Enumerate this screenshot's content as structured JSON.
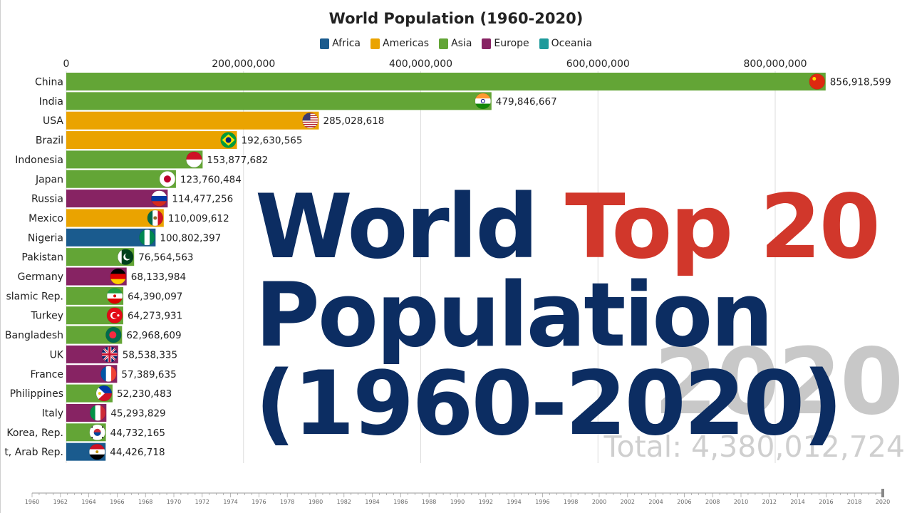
{
  "chart_data": {
    "type": "bar",
    "title": "World Population (1960-2020)",
    "legend": {
      "placement": "top-center",
      "entries": [
        {
          "name": "Africa",
          "color": "#1a5b8e"
        },
        {
          "name": "Americas",
          "color": "#eaa300"
        },
        {
          "name": "Asia",
          "color": "#63a536"
        },
        {
          "name": "Europe",
          "color": "#872363"
        },
        {
          "name": "Oceania",
          "color": "#1d9a9b"
        }
      ]
    },
    "axis": {
      "position": "top",
      "xlim": [
        0,
        880000000
      ],
      "ticks": [
        0,
        200000000,
        400000000,
        600000000,
        800000000
      ],
      "tick_labels": [
        "0",
        "200,000,000",
        "400,000,000",
        "600,000,000",
        "800,000,000"
      ],
      "grid": true
    },
    "categories": [
      "China",
      "India",
      "USA",
      "Brazil",
      "Indonesia",
      "Japan",
      "Russia",
      "Mexico",
      "Nigeria",
      "Pakistan",
      "Germany",
      "slamic Rep.",
      "Turkey",
      "Bangladesh",
      "UK",
      "France",
      "Philippines",
      "Italy",
      "Korea, Rep.",
      "t, Arab Rep."
    ],
    "values": [
      856918599,
      479846667,
      285028618,
      192630565,
      153877682,
      123760484,
      114477256,
      110009612,
      100802397,
      76564563,
      68133984,
      64390097,
      64273931,
      62968609,
      58538335,
      57389635,
      52230483,
      45293829,
      44732165,
      44426718
    ],
    "value_labels": [
      "856,918,599",
      "479,846,667",
      "285,028,618",
      "192,630,565",
      "153,877,682",
      "123,760,484",
      "114,477,256",
      "110,009,612",
      "100,802,397",
      "76,564,563",
      "68,133,984",
      "64,390,097",
      "64,273,931",
      "62,968,609",
      "58,538,335",
      "57,389,635",
      "52,230,483",
      "45,293,829",
      "44,732,165",
      "44,426,718"
    ],
    "regions": [
      "Asia",
      "Asia",
      "Americas",
      "Americas",
      "Asia",
      "Asia",
      "Europe",
      "Americas",
      "Africa",
      "Asia",
      "Europe",
      "Asia",
      "Asia",
      "Asia",
      "Europe",
      "Europe",
      "Asia",
      "Europe",
      "Asia",
      "Africa"
    ],
    "flags": [
      "china-flag",
      "india-flag",
      "usa-flag",
      "brazil-flag",
      "indonesia-flag",
      "japan-flag",
      "russia-flag",
      "mexico-flag",
      "nigeria-flag",
      "pakistan-flag",
      "germany-flag",
      "iran-flag",
      "turkey-flag",
      "bangladesh-flag",
      "uk-flag",
      "france-flag",
      "philippines-flag",
      "italy-flag",
      "korea-flag",
      "egypt-flag"
    ],
    "current_year": "2020",
    "total_label": "Total: 4,380,012,724",
    "timeline": {
      "start": 1960,
      "end": 2020,
      "step": 2,
      "labels": [
        "1960",
        "1962",
        "1964",
        "1966",
        "1968",
        "1970",
        "1972",
        "1974",
        "1976",
        "1978",
        "1980",
        "1982",
        "1984",
        "1986",
        "1988",
        "1990",
        "1992",
        "1994",
        "1996",
        "1998",
        "2000",
        "2002",
        "2004",
        "2006",
        "2008",
        "2010",
        "2012",
        "2014",
        "2016",
        "2018",
        "2020"
      ]
    }
  },
  "overlay": {
    "line1_a": "World",
    "line1_b": "Top 20",
    "line2": "Population",
    "line3": "(1960-2020)"
  },
  "colors": {
    "grid": "#dddddd",
    "label_text": "#222222",
    "overlay_navy": "#0c2d62",
    "overlay_red": "#d1372b"
  }
}
